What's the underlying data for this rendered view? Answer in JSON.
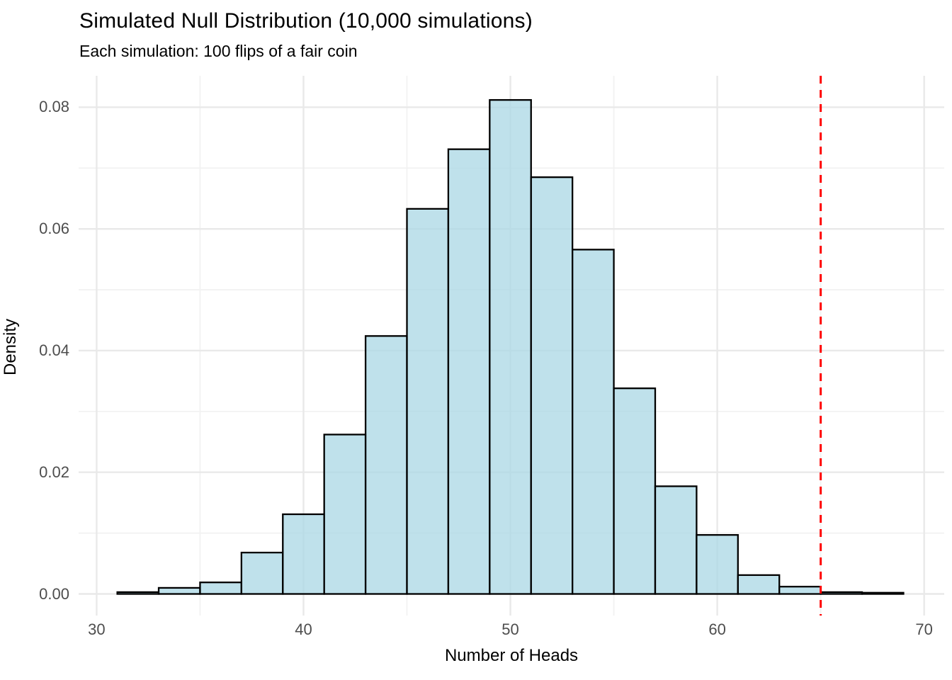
{
  "chart_data": {
    "type": "bar",
    "subtype": "histogram",
    "title": "Simulated Null Distribution (10,000 simulations)",
    "subtitle": "Each simulation: 100 flips of a fair coin",
    "xlabel": "Number of Heads",
    "ylabel": "Density",
    "xlim": [
      29.13,
      70.97
    ],
    "ylim": [
      -0.00355,
      0.08517
    ],
    "x_ticks": [
      "30",
      "40",
      "50",
      "60",
      "70"
    ],
    "x_tick_values": [
      30,
      40,
      50,
      60,
      70
    ],
    "y_ticks": [
      "0.00",
      "0.02",
      "0.04",
      "0.06",
      "0.08"
    ],
    "y_tick_values": [
      0.0,
      0.02,
      0.04,
      0.06,
      0.08
    ],
    "grid": {
      "major_x": [
        30,
        40,
        50,
        60,
        70
      ],
      "minor_x": [
        35,
        45,
        55,
        65
      ],
      "major_y": [
        0.0,
        0.02,
        0.04,
        0.06,
        0.08
      ],
      "minor_y": [
        0.01,
        0.03,
        0.05,
        0.07
      ],
      "visible": true
    },
    "bin_width": 2,
    "bins": [
      {
        "start": 31,
        "end": 33,
        "density": 0.0003
      },
      {
        "start": 33,
        "end": 35,
        "density": 0.001
      },
      {
        "start": 35,
        "end": 37,
        "density": 0.0019
      },
      {
        "start": 37,
        "end": 39,
        "density": 0.0068
      },
      {
        "start": 39,
        "end": 41,
        "density": 0.0131
      },
      {
        "start": 41,
        "end": 43,
        "density": 0.0262
      },
      {
        "start": 43,
        "end": 45,
        "density": 0.0424
      },
      {
        "start": 45,
        "end": 47,
        "density": 0.0633
      },
      {
        "start": 47,
        "end": 49,
        "density": 0.0731
      },
      {
        "start": 49,
        "end": 51,
        "density": 0.0812
      },
      {
        "start": 51,
        "end": 53,
        "density": 0.0685
      },
      {
        "start": 53,
        "end": 55,
        "density": 0.0566
      },
      {
        "start": 55,
        "end": 57,
        "density": 0.0338
      },
      {
        "start": 57,
        "end": 59,
        "density": 0.0177
      },
      {
        "start": 59,
        "end": 61,
        "density": 0.0097
      },
      {
        "start": 61,
        "end": 63,
        "density": 0.0031
      },
      {
        "start": 63,
        "end": 65,
        "density": 0.0012
      },
      {
        "start": 65,
        "end": 67,
        "density": 0.0003
      },
      {
        "start": 67,
        "end": 69,
        "density": 0.0002
      }
    ],
    "vline": {
      "x": 65,
      "style": "dashed",
      "color": "#ff0000",
      "width": 3,
      "dash": "11 9"
    },
    "legend": "none",
    "colors": {
      "background": "#ffffff",
      "bar_fill": "#add8e6",
      "bar_fill_opacity": 0.78,
      "bar_stroke": "#000000",
      "grid_major": "#e9e9e9",
      "grid_minor": "#f2f2f2",
      "tick_label": "#4d4d4d",
      "text": "#000000",
      "vline": "#ff0000"
    }
  }
}
